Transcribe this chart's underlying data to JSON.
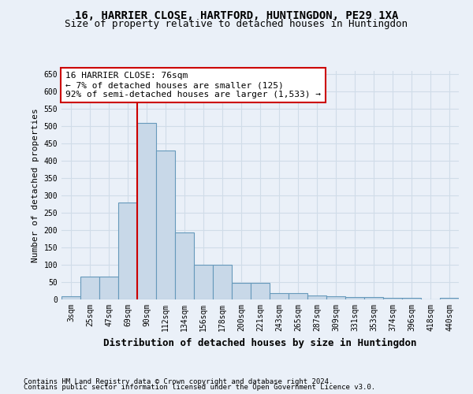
{
  "title1": "16, HARRIER CLOSE, HARTFORD, HUNTINGDON, PE29 1XA",
  "title2": "Size of property relative to detached houses in Huntingdon",
  "xlabel": "Distribution of detached houses by size in Huntingdon",
  "ylabel": "Number of detached properties",
  "categories": [
    "3sqm",
    "25sqm",
    "47sqm",
    "69sqm",
    "90sqm",
    "112sqm",
    "134sqm",
    "156sqm",
    "178sqm",
    "200sqm",
    "221sqm",
    "243sqm",
    "265sqm",
    "287sqm",
    "309sqm",
    "331sqm",
    "353sqm",
    "374sqm",
    "396sqm",
    "418sqm",
    "440sqm"
  ],
  "values": [
    10,
    65,
    65,
    280,
    510,
    430,
    193,
    100,
    100,
    48,
    48,
    18,
    18,
    12,
    10,
    7,
    6,
    5,
    4,
    0,
    5
  ],
  "bar_color": "#c8d8e8",
  "bar_edge_color": "#6699bb",
  "vline_x_index": 3,
  "vline_color": "#cc0000",
  "annotation_line1": "16 HARRIER CLOSE: 76sqm",
  "annotation_line2": "← 7% of detached houses are smaller (125)",
  "annotation_line3": "92% of semi-detached houses are larger (1,533) →",
  "annotation_box_color": "white",
  "annotation_box_edge": "#cc0000",
  "ylim": [
    0,
    660
  ],
  "yticks": [
    0,
    50,
    100,
    150,
    200,
    250,
    300,
    350,
    400,
    450,
    500,
    550,
    600,
    650
  ],
  "bg_color": "#eaf0f8",
  "grid_color": "#d0dce8",
  "footnote1": "Contains HM Land Registry data © Crown copyright and database right 2024.",
  "footnote2": "Contains public sector information licensed under the Open Government Licence v3.0.",
  "title_fontsize": 10,
  "subtitle_fontsize": 9,
  "axis_xlabel_fontsize": 9,
  "axis_ylabel_fontsize": 8,
  "tick_fontsize": 7,
  "annotation_fontsize": 8,
  "footnote_fontsize": 6.5
}
